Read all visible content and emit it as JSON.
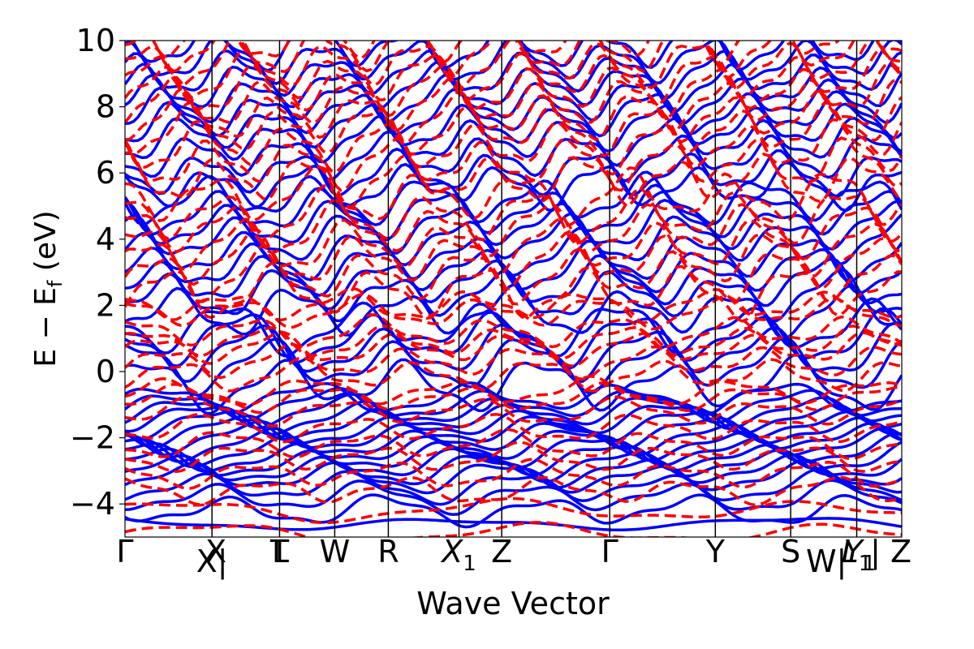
{
  "chart_data": {
    "type": "line",
    "xlabel": "Wave Vector",
    "ylabel_main": "E − E",
    "ylabel_sub": "f",
    "ylabel_unit": " (eV)",
    "ylim": [
      -5,
      10
    ],
    "yticks": [
      {
        "value": 10,
        "label": "10"
      },
      {
        "value": 8,
        "label": "8"
      },
      {
        "value": 6,
        "label": "6"
      },
      {
        "value": 4,
        "label": "4"
      },
      {
        "value": 2,
        "label": "2"
      },
      {
        "value": 0,
        "label": "0"
      },
      {
        "value": -2,
        "label": "−2"
      },
      {
        "value": -4,
        "label": "−4"
      }
    ],
    "xlim": [
      0,
      1
    ],
    "kpoints": [
      {
        "pos": 0.0,
        "label": "Γ",
        "sub": ""
      },
      {
        "pos": 0.112,
        "label": "X|",
        "sub": ""
      },
      {
        "pos": 0.117,
        "label": "X",
        "sub": ""
      },
      {
        "pos": 0.2,
        "label": "L",
        "sub": ""
      },
      {
        "pos": 0.199,
        "label": "T",
        "sub": ""
      },
      {
        "pos": 0.27,
        "label": "W",
        "sub": ""
      },
      {
        "pos": 0.339,
        "label": "R",
        "sub": ""
      },
      {
        "pos": 0.43,
        "label": "X",
        "sub": "1"
      },
      {
        "pos": 0.485,
        "label": "Z",
        "sub": ""
      },
      {
        "pos": 0.624,
        "label": "Γ",
        "sub": ""
      },
      {
        "pos": 0.76,
        "label": "Y",
        "sub": ""
      },
      {
        "pos": 0.857,
        "label": "S",
        "sub": ""
      },
      {
        "pos": 0.903,
        "label": "W|",
        "sub": ""
      },
      {
        "pos": 0.942,
        "label": "L",
        "sub": "1"
      },
      {
        "pos": 0.946,
        "label": "Y",
        "sub": "1"
      },
      {
        "pos": 0.986,
        "label": "| Z",
        "sub": ""
      }
    ],
    "vlines": [
      0.112,
      0.199,
      0.27,
      0.339,
      0.43,
      0.485,
      0.624,
      0.76,
      0.857,
      0.942
    ],
    "series": [
      {
        "style": "solid",
        "color": "#0000ff"
      },
      {
        "style": "dashed",
        "color": "#ff0000"
      }
    ],
    "bands_solid": [
      {
        "levels": [
          -4.6
        ],
        "amp": 0.15,
        "freq": 2.2,
        "phase": 0.3
      },
      {
        "levels": [
          -4.2,
          -3.8,
          -3.5,
          -3.2,
          -3.0,
          -2.8,
          -2.6,
          -2.4,
          -2.2,
          -2.0,
          -1.8,
          -1.6,
          -1.4,
          -1.2,
          -1.0,
          -0.8
        ],
        "amp": 0.35,
        "freq": 5.0,
        "phase": 1.1
      },
      {
        "levels": [
          -0.4,
          0.2,
          0.6,
          1.0,
          1.3
        ],
        "amp": 0.6,
        "freq": 6.0,
        "phase": 0.7
      },
      {
        "levels": [
          1.8,
          2.3,
          2.7,
          3.1,
          3.5,
          4.0,
          4.4,
          4.8,
          5.2
        ],
        "amp": 0.55,
        "freq": 7.0,
        "phase": 2.0
      },
      {
        "levels": [
          5.6,
          6.0,
          6.5,
          7.0,
          7.4,
          7.8,
          8.2,
          8.6,
          9.0,
          9.4,
          9.8
        ],
        "amp": 0.5,
        "freq": 8.0,
        "phase": 0.4
      }
    ],
    "bands_dashed": [
      {
        "levels": [
          -4.9,
          -4.2
        ],
        "amp": 0.25,
        "freq": 2.5,
        "phase": 1.7
      },
      {
        "levels": [
          -3.6,
          -3.1,
          -2.6,
          -2.2,
          -1.7,
          -1.2,
          -0.8,
          -0.6
        ],
        "amp": 0.3,
        "freq": 5.5,
        "phase": 2.4
      },
      {
        "levels": [
          -0.1,
          0.3,
          0.7,
          0.9,
          1.2,
          1.8,
          2.0
        ],
        "amp": 0.35,
        "freq": 6.5,
        "phase": 0.9
      },
      {
        "levels": [
          2.4,
          2.9,
          3.4,
          3.8,
          4.3,
          4.7,
          5.3
        ],
        "amp": 0.6,
        "freq": 7.5,
        "phase": 3.1
      },
      {
        "levels": [
          5.8,
          6.3,
          6.8,
          7.3,
          7.7,
          8.1,
          8.5,
          8.9,
          9.3,
          9.7,
          10.1
        ],
        "amp": 0.55,
        "freq": 8.5,
        "phase": 1.5
      }
    ]
  }
}
